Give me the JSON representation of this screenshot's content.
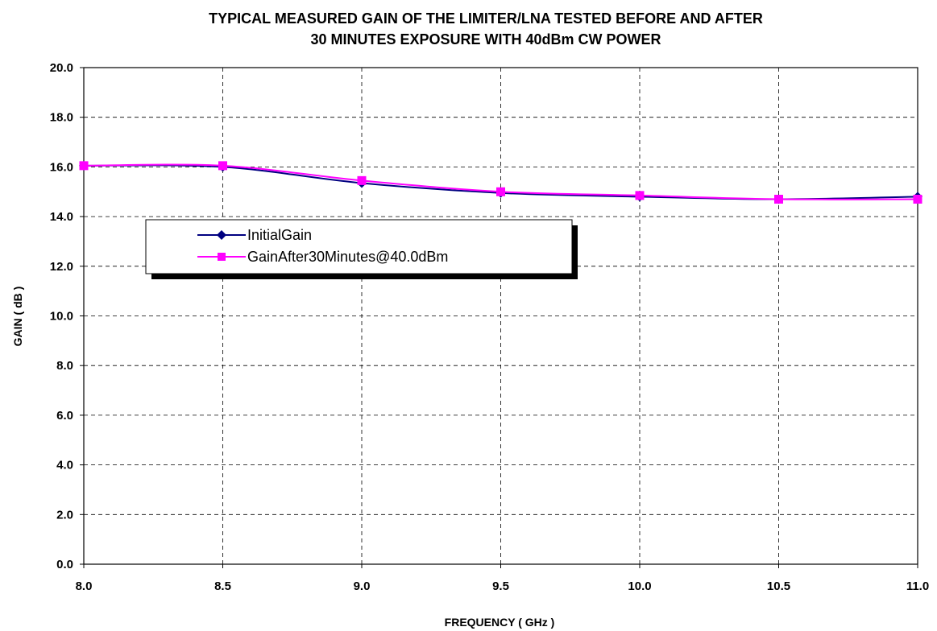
{
  "chart_data": {
    "type": "line",
    "title": [
      "TYPICAL MEASURED GAIN OF THE LIMITER/LNA TESTED BEFORE AND AFTER",
      "30 MINUTES EXPOSURE WITH 40dBm CW POWER"
    ],
    "xlabel": "FREQUENCY ( GHz )",
    "ylabel": "GAIN ( dB )",
    "xlim": [
      8.0,
      11.0
    ],
    "ylim": [
      0.0,
      20.0
    ],
    "xticks": [
      "8.0",
      "8.5",
      "9.0",
      "9.5",
      "10.0",
      "10.5",
      "11.0"
    ],
    "yticks": [
      "0.0",
      "2.0",
      "4.0",
      "6.0",
      "8.0",
      "10.0",
      "12.0",
      "14.0",
      "16.0",
      "18.0",
      "20.0"
    ],
    "grid": true,
    "legend_position": "upper-left",
    "x": [
      8.0,
      8.5,
      9.0,
      9.5,
      10.0,
      10.5,
      11.0
    ],
    "series": [
      {
        "name": "InitialGain",
        "values": [
          16.05,
          16.0,
          15.35,
          14.95,
          14.8,
          14.7,
          14.8
        ],
        "color": "#000080",
        "marker": "diamond"
      },
      {
        "name": "GainAfter30Minutes@40.0dBm",
        "values": [
          16.05,
          16.05,
          15.45,
          15.0,
          14.85,
          14.7,
          14.7
        ],
        "color": "#ff00ff",
        "marker": "square"
      }
    ]
  }
}
